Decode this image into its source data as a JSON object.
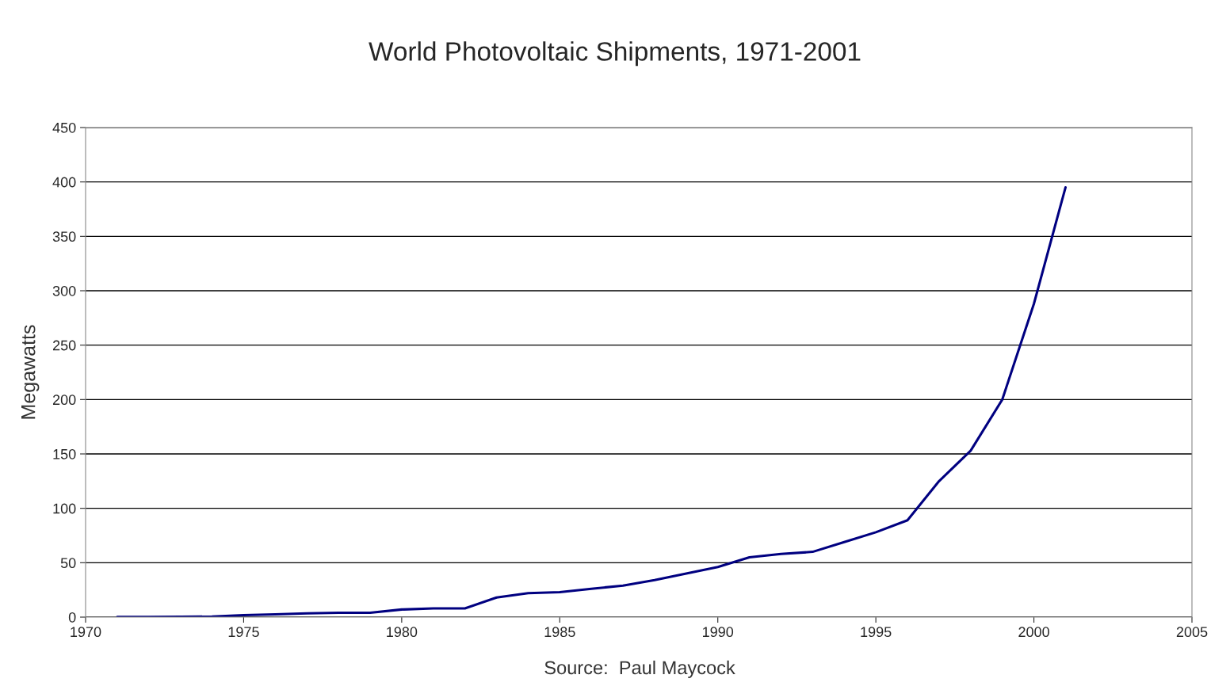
{
  "chart_data": {
    "type": "line",
    "title": "World Photovoltaic Shipments, 1971-2001",
    "ylabel": "Megawatts",
    "annotations": [
      "Source:  Paul Maycock"
    ],
    "x": [
      1971,
      1972,
      1973,
      1974,
      1975,
      1976,
      1977,
      1978,
      1979,
      1980,
      1981,
      1982,
      1983,
      1984,
      1985,
      1986,
      1987,
      1988,
      1989,
      1990,
      1991,
      1992,
      1993,
      1994,
      1995,
      1996,
      1997,
      1998,
      1999,
      2000,
      2001
    ],
    "series": [
      {
        "color": "#000080",
        "values": [
          0.1,
          0.2,
          0.3,
          0.5,
          1.8,
          2.5,
          3.5,
          4,
          4,
          7,
          8,
          8,
          18,
          22,
          23,
          26,
          29,
          34,
          40,
          46,
          55,
          58,
          60,
          69,
          78,
          89,
          125,
          153,
          200,
          288,
          395
        ]
      }
    ],
    "xlim": [
      1970,
      2005
    ],
    "xticks": [
      1970,
      1975,
      1980,
      1985,
      1990,
      1995,
      2000,
      2005
    ],
    "ylim": [
      0,
      450
    ],
    "yticks": [
      0,
      50,
      100,
      150,
      200,
      250,
      300,
      350,
      400,
      450
    ],
    "grid": "y",
    "legend": false,
    "marker": "none",
    "line_style": "solid"
  }
}
